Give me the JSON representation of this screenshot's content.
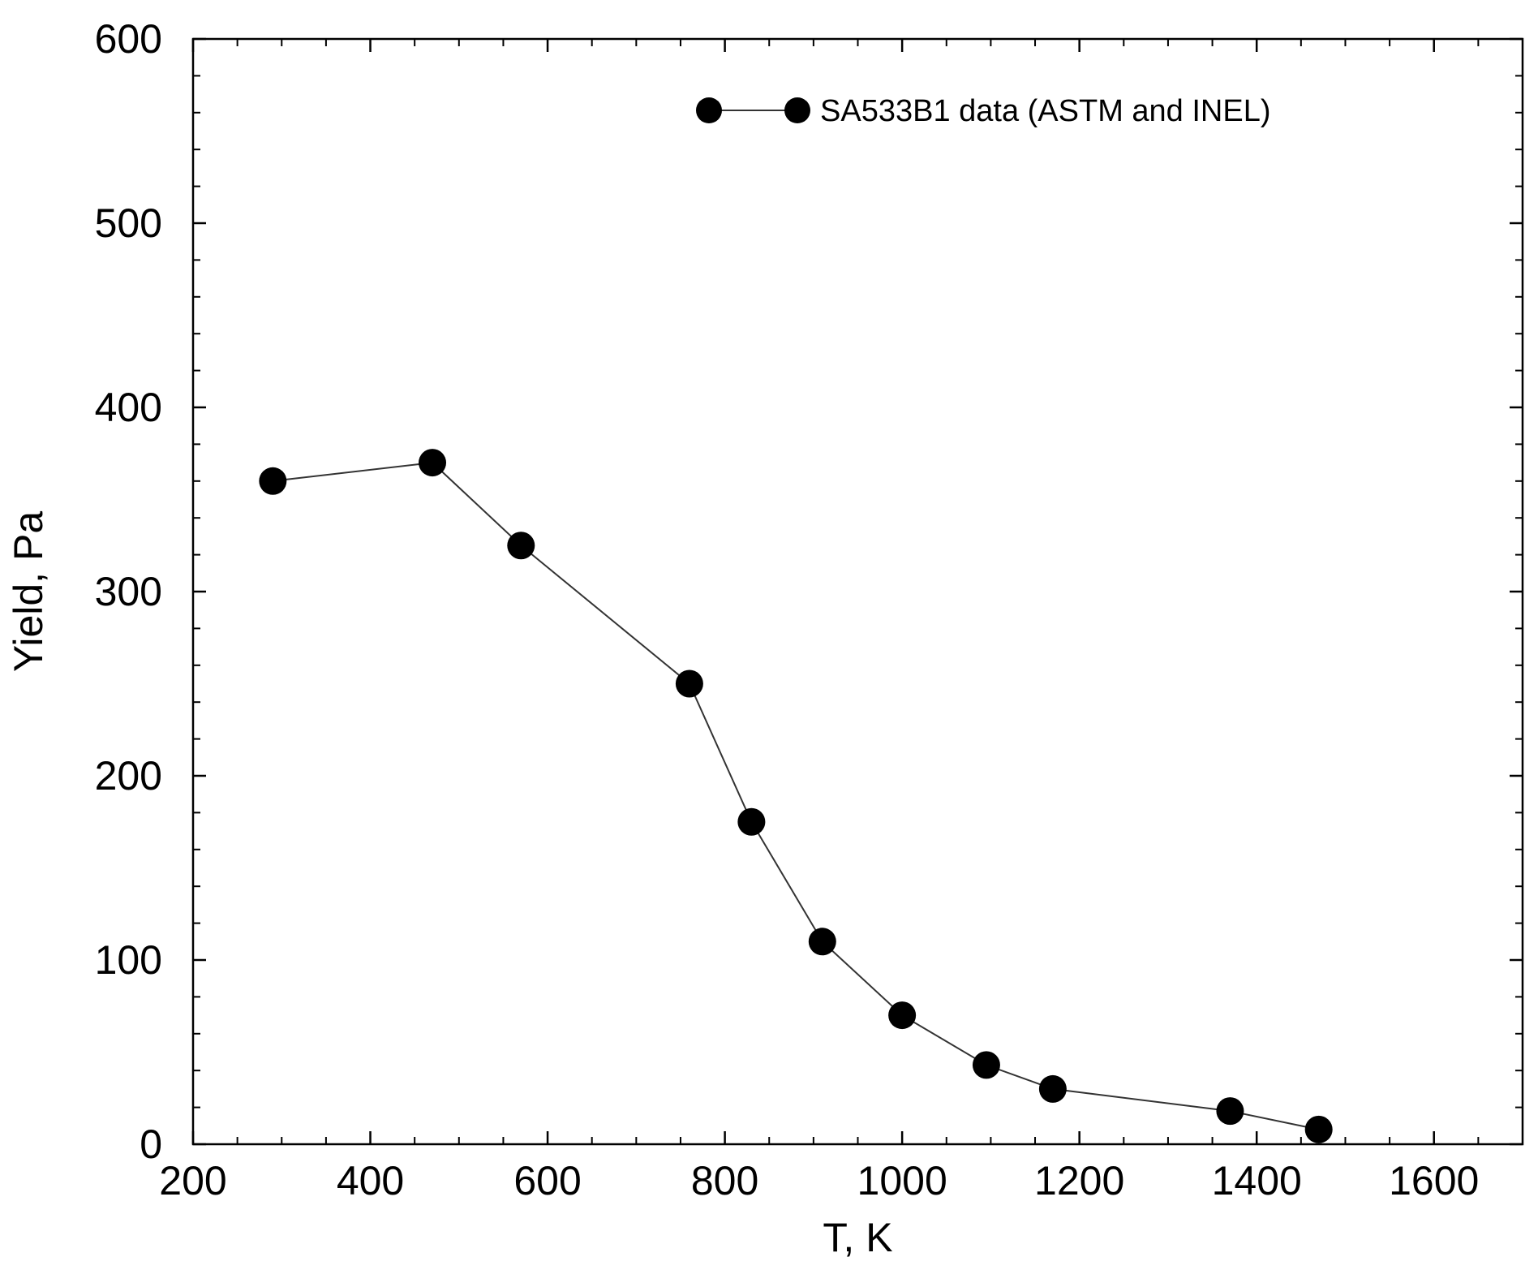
{
  "chart_data": {
    "type": "line",
    "title": "",
    "xlabel": "T, K",
    "ylabel": "Yield, Pa",
    "xlim": [
      200,
      1700
    ],
    "ylim": [
      0,
      600
    ],
    "x_ticks": [
      200,
      400,
      600,
      800,
      1000,
      1200,
      1400,
      1600
    ],
    "y_ticks": [
      0,
      100,
      200,
      300,
      400,
      500,
      600
    ],
    "x_minor_step": 50,
    "y_minor_step": 20,
    "grid": false,
    "legend_position": "top-right",
    "series": [
      {
        "name": "SA533B1 data (ASTM and INEL)",
        "color": "#000000",
        "marker": "filled-circle",
        "x": [
          290,
          470,
          570,
          760,
          830,
          910,
          1000,
          1095,
          1170,
          1370,
          1470
        ],
        "y": [
          360,
          370,
          325,
          250,
          175,
          110,
          70,
          43,
          30,
          18,
          8
        ]
      }
    ]
  }
}
